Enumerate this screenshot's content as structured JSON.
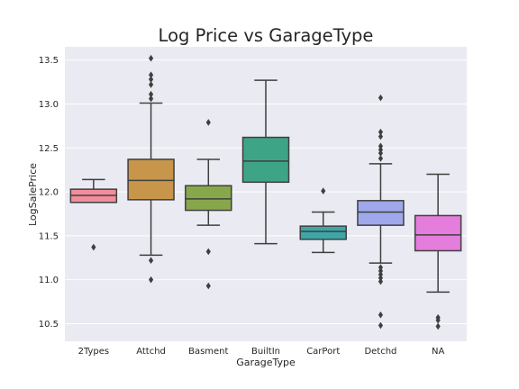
{
  "chart_data": {
    "type": "box",
    "title": "Log Price vs GarageType",
    "xlabel": "GarageType",
    "ylabel": "LogSalePrice",
    "ylim": [
      10.3,
      13.65
    ],
    "yticks": [
      10.5,
      11.0,
      11.5,
      12.0,
      12.5,
      13.0,
      13.5
    ],
    "ytick_labels": [
      "10.5",
      "11.0",
      "11.5",
      "12.0",
      "12.5",
      "13.0",
      "13.5"
    ],
    "grid": true,
    "legend": "none",
    "categories": [
      "2Types",
      "Attchd",
      "Basment",
      "BuiltIn",
      "CarPort",
      "Detchd",
      "NA"
    ],
    "boxes": [
      {
        "category": "2Types",
        "color": "#f28e9c",
        "whislo": 11.88,
        "q1": 11.88,
        "med": 11.96,
        "q3": 12.03,
        "whishi": 12.14,
        "fliers": [
          11.37
        ]
      },
      {
        "category": "Attchd",
        "color": "#c7964a",
        "whislo": 11.28,
        "q1": 11.91,
        "med": 12.13,
        "q3": 12.37,
        "whishi": 13.01,
        "fliers": [
          11.22,
          11.0,
          13.06,
          13.11,
          13.22,
          13.28,
          13.33,
          13.52
        ]
      },
      {
        "category": "Basment",
        "color": "#87a84a",
        "whislo": 11.62,
        "q1": 11.79,
        "med": 11.92,
        "q3": 12.07,
        "whishi": 12.37,
        "fliers": [
          12.79,
          11.32,
          10.93
        ]
      },
      {
        "category": "BuiltIn",
        "color": "#3ea486",
        "whislo": 11.41,
        "q1": 12.11,
        "med": 12.35,
        "q3": 12.62,
        "whishi": 13.27,
        "fliers": []
      },
      {
        "category": "CarPort",
        "color": "#3fa6a6",
        "whislo": 11.31,
        "q1": 11.46,
        "med": 11.55,
        "q3": 11.61,
        "whishi": 11.77,
        "fliers": [
          12.01
        ]
      },
      {
        "category": "Detchd",
        "color": "#9ea8ea",
        "whislo": 11.19,
        "q1": 11.62,
        "med": 11.77,
        "q3": 11.9,
        "whishi": 12.32,
        "fliers": [
          13.07,
          12.68,
          12.63,
          12.52,
          12.48,
          12.44,
          12.38,
          11.14,
          11.1,
          11.06,
          11.02,
          10.98,
          10.6,
          10.48
        ]
      },
      {
        "category": "NA",
        "color": "#e47ddb",
        "whislo": 10.86,
        "q1": 11.33,
        "med": 11.51,
        "q3": 11.73,
        "whishi": 12.2,
        "fliers": [
          10.57,
          10.54,
          10.47
        ]
      }
    ]
  }
}
